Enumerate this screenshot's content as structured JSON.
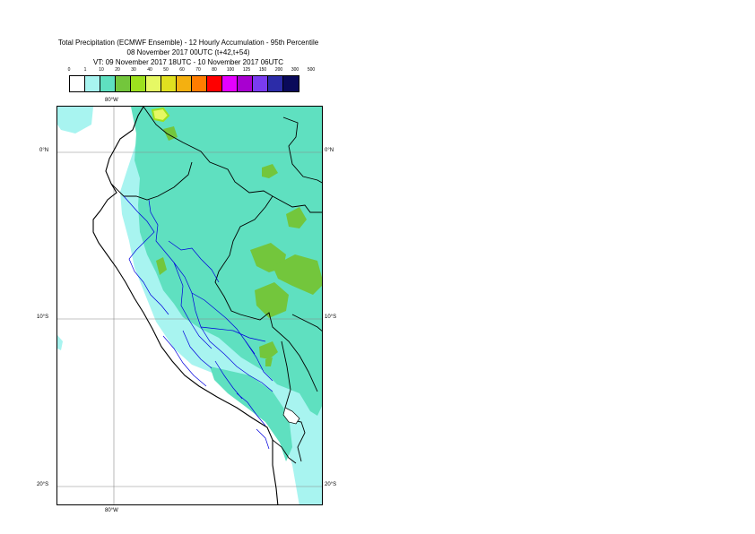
{
  "header": {
    "line1": "Total Precipitation (ECMWF Ensemble) - 12 Hourly Accumulation - 95th Percentile",
    "line2": "08 November 2017 00UTC (t+42,t+54)",
    "line3": "VT: 09 November 2017 18UTC - 10 November 2017 06UTC"
  },
  "legend": {
    "thresholds": [
      "0",
      "1",
      "10",
      "20",
      "30",
      "40",
      "50",
      "60",
      "70",
      "80",
      "100",
      "125",
      "150",
      "200",
      "300",
      "500"
    ],
    "colors": [
      "#ffffff",
      "#a8f4f0",
      "#5fe0c0",
      "#73c63c",
      "#9de01e",
      "#e6f864",
      "#e0e020",
      "#f4b010",
      "#ff7c00",
      "#ff0000",
      "#e400ff",
      "#a800d0",
      "#7a3cf0",
      "#2c2ca8",
      "#0a0a5a"
    ]
  },
  "map": {
    "lon_top": "80°W",
    "lon_bottom": "80°W",
    "lat_0_left": "0°N",
    "lat_0_right": "0°N",
    "lat_10_left": "10°S",
    "lat_10_right": "10°S",
    "lat_20_left": "20°S",
    "lat_20_right": "20°S"
  }
}
